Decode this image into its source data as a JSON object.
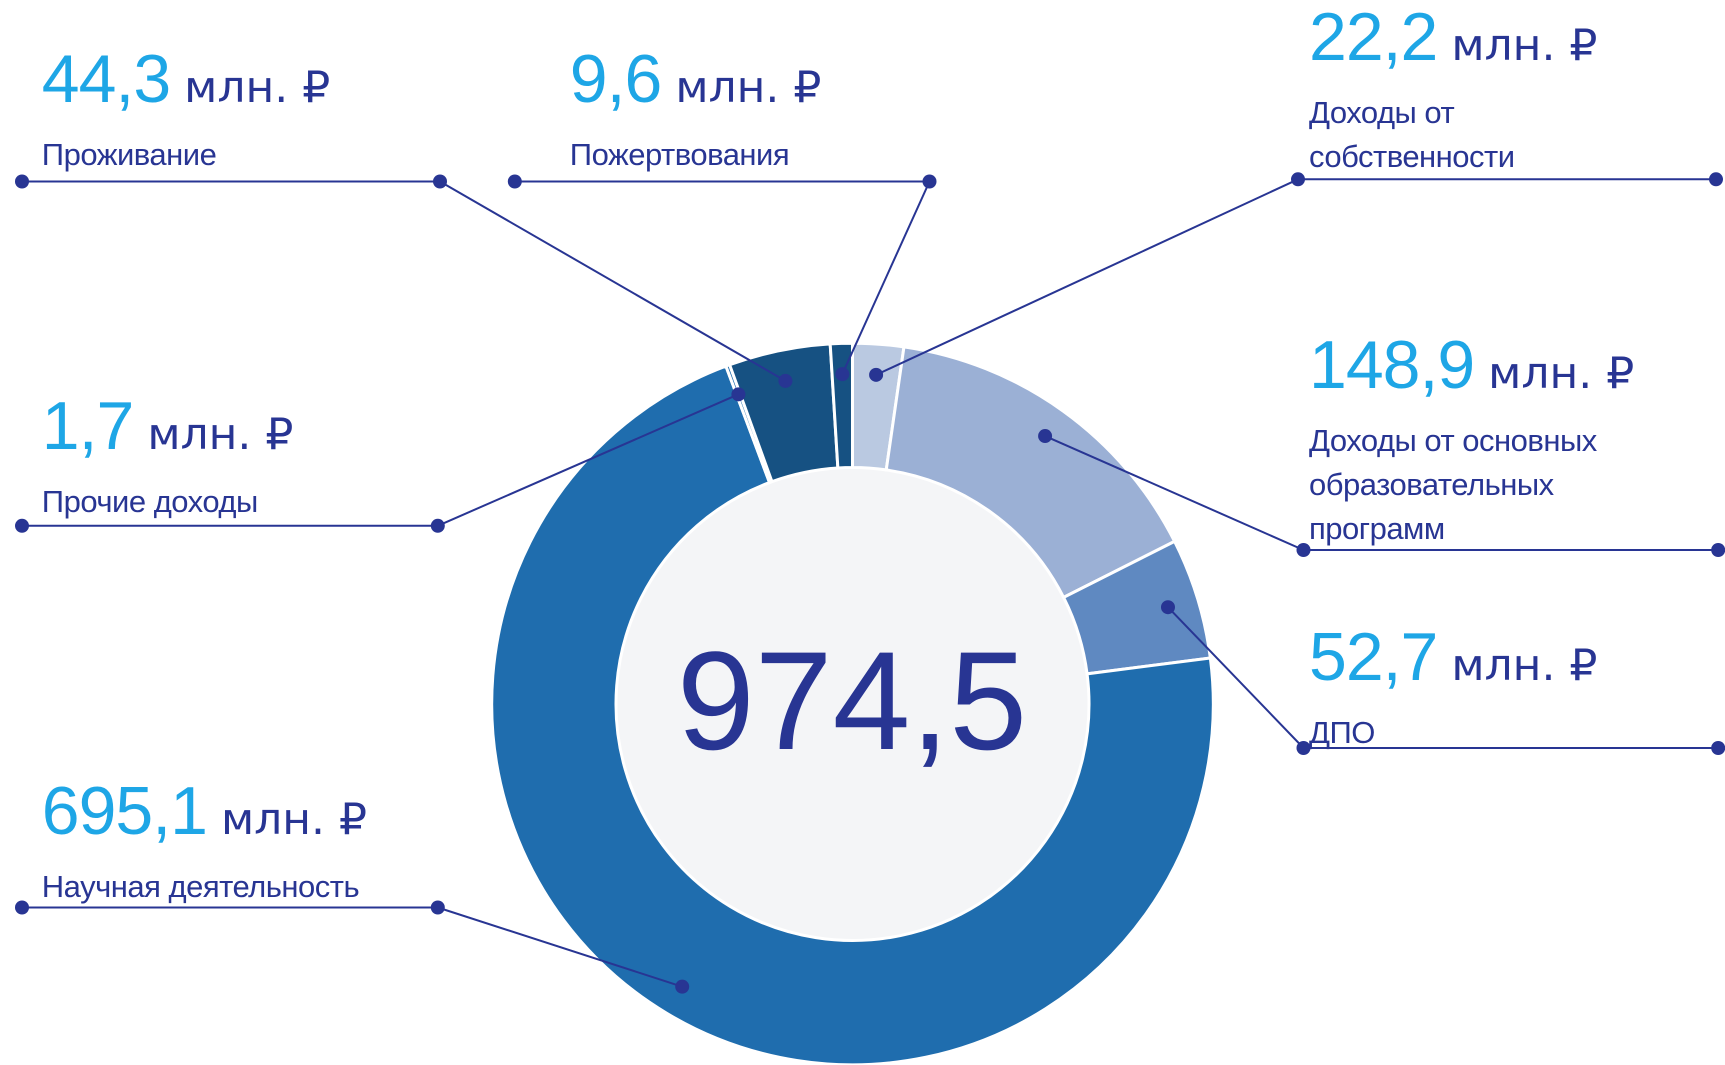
{
  "chart_data": {
    "type": "donut",
    "categories": [
      "Доходы от собственности",
      "Доходы от основных образовательных программ",
      "ДПО",
      "Научная деятельность",
      "Прочие доходы",
      "Проживание",
      "Пожертвования"
    ],
    "values": [
      22.2,
      148.9,
      52.7,
      695.1,
      1.7,
      44.3,
      9.6
    ],
    "value_labels": [
      "22,2",
      "148,9",
      "52,7",
      "695,1",
      "1,7",
      "44,3",
      "9,6"
    ],
    "unit": "млн. ₽",
    "colors": [
      "#bac9e1",
      "#9bb0d5",
      "#5f89c1",
      "#1f6dae",
      "#1f6dae",
      "#165182",
      "#165182"
    ],
    "total": 974.5,
    "total_label": "974,5"
  }
}
